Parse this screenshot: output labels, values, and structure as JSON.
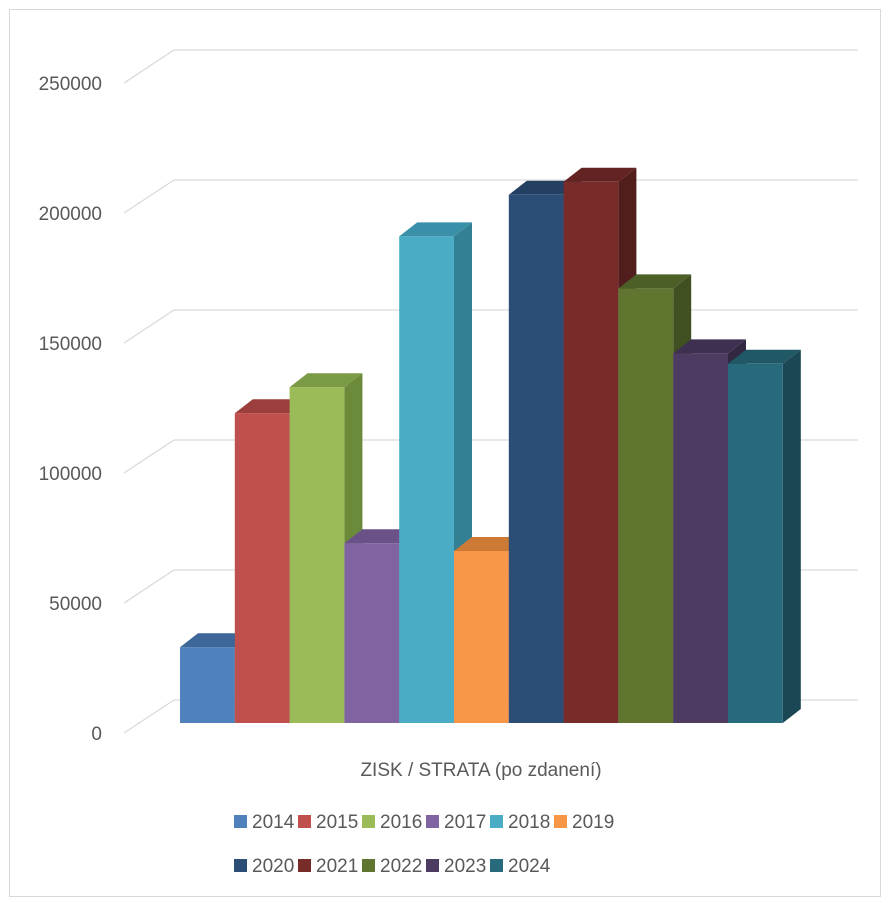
{
  "chart_data": {
    "type": "bar",
    "categories": [
      "ZISK / STRATA (po zdanení)"
    ],
    "series": [
      {
        "name": "2014",
        "values": [
          33000
        ],
        "color": "#4f81bd",
        "side": "#385d8a",
        "top": "#3d6799"
      },
      {
        "name": "2015",
        "values": [
          123000
        ],
        "color": "#c0504d",
        "side": "#8c3836",
        "top": "#9c3e3b"
      },
      {
        "name": "2016",
        "values": [
          133000
        ],
        "color": "#9bbb59",
        "side": "#6b8a3a",
        "top": "#7a9a45"
      },
      {
        "name": "2017",
        "values": [
          73000
        ],
        "color": "#8064a2",
        "side": "#5c4876",
        "top": "#6a5288"
      },
      {
        "name": "2018",
        "values": [
          191000
        ],
        "color": "#4bacc6",
        "side": "#337f93",
        "top": "#3a90a8"
      },
      {
        "name": "2019",
        "values": [
          70000
        ],
        "color": "#f79646",
        "side": "#b66c2f",
        "top": "#cc7a36"
      },
      {
        "name": "2020",
        "values": [
          207000
        ],
        "color": "#2c4d75",
        "side": "#1e3552",
        "top": "#233f61"
      },
      {
        "name": "2021",
        "values": [
          212000
        ],
        "color": "#772c2a",
        "side": "#521e1d",
        "top": "#632322"
      },
      {
        "name": "2022",
        "values": [
          171000
        ],
        "color": "#5f7530",
        "side": "#405020",
        "top": "#4c5f26"
      },
      {
        "name": "2023",
        "values": [
          146000
        ],
        "color": "#4d3b62",
        "side": "#332842",
        "top": "#3e3050"
      },
      {
        "name": "2024",
        "values": [
          142000
        ],
        "color": "#276a7c",
        "side": "#1a4753",
        "top": "#205866"
      }
    ],
    "yticks": [
      "0",
      "50000",
      "100000",
      "150000",
      "200000",
      "250000"
    ],
    "ylim": [
      0,
      250000
    ],
    "grid": true,
    "legend": "bottom",
    "title": "",
    "xlabel": "",
    "ylabel": ""
  }
}
